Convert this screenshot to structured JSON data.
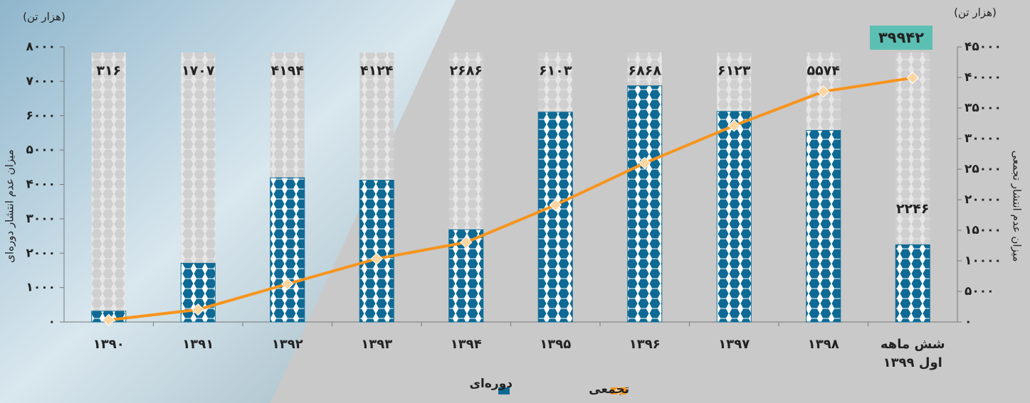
{
  "chart_data": {
    "type": "bar_line",
    "ylabel": "میزان عدم انتشار دوره‌ای",
    "y2label": "میزان عدم انتشار تجمعی",
    "yunit": "(هزار تن)",
    "y2unit": "(هزار تن)",
    "categories": [
      "۱۳۹۰",
      "۱۳۹۱",
      "۱۳۹۲",
      "۱۳۹۳",
      "۱۳۹۴",
      "۱۳۹۵",
      "۱۳۹۶",
      "۱۳۹۷",
      "۱۳۹۸",
      "شش ماهه اول ۱۳۹۹"
    ],
    "series": [
      {
        "name": "دوره‌ای",
        "color": "#0e6a94",
        "values": [
          316,
          1707,
          4194,
          4124,
          2686,
          6103,
          6868,
          6123,
          5574,
          2246
        ],
        "value_labels": [
          "۳۱۶",
          "۱۷۰۷",
          "۴۱۹۴",
          "۴۱۲۴",
          "۲۶۸۶",
          "۶۱۰۳",
          "۶۸۶۸",
          "۶۱۲۳",
          "۵۵۷۴",
          "۲۲۴۶"
        ]
      },
      {
        "name": "تجمعی",
        "color": "#f7941d",
        "axis": "y2",
        "values": [
          316,
          2023,
          6217,
          10341,
          13027,
          19130,
          25998,
          32121,
          37695,
          39942
        ],
        "value_labels": [
          null,
          null,
          null,
          null,
          null,
          null,
          null,
          null,
          null,
          "۳۹۹۴۲"
        ]
      }
    ],
    "ylim": [
      0,
      8000
    ],
    "yticks": [
      {
        "value": 0,
        "label": "۰"
      },
      {
        "value": 1000,
        "label": "۱۰۰۰"
      },
      {
        "value": 2000,
        "label": "۲۰۰۰"
      },
      {
        "value": 3000,
        "label": "۳۰۰۰"
      },
      {
        "value": 4000,
        "label": "۴۰۰۰"
      },
      {
        "value": 5000,
        "label": "۵۰۰۰"
      },
      {
        "value": 6000,
        "label": "۶۰۰۰"
      },
      {
        "value": 7000,
        "label": "۷۰۰۰"
      },
      {
        "value": 8000,
        "label": "۸۰۰۰"
      }
    ],
    "y2lim": [
      0,
      45000
    ],
    "y2ticks": [
      {
        "value": 0,
        "label": "۰"
      },
      {
        "value": 5000,
        "label": "۵۰۰۰"
      },
      {
        "value": 10000,
        "label": "۱۰۰۰۰"
      },
      {
        "value": 15000,
        "label": "۱۵۰۰۰"
      },
      {
        "value": 20000,
        "label": "۲۰۰۰۰"
      },
      {
        "value": 25000,
        "label": "۲۵۰۰۰"
      },
      {
        "value": 30000,
        "label": "۳۰۰۰۰"
      },
      {
        "value": 35000,
        "label": "۳۵۰۰۰"
      },
      {
        "value": 40000,
        "label": "۴۰۰۰۰"
      },
      {
        "value": 45000,
        "label": "۴۵۰۰۰"
      }
    ]
  }
}
